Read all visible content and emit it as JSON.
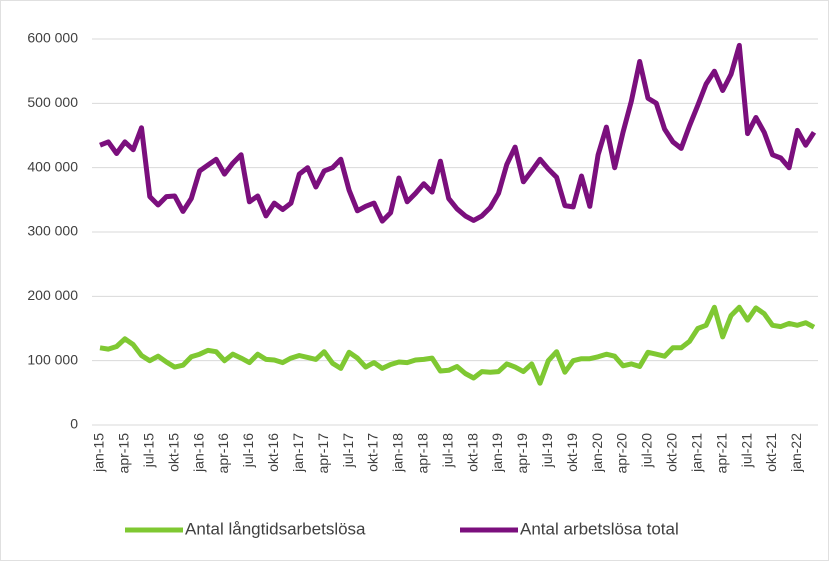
{
  "chart_data": {
    "type": "line",
    "categories": [
      "jan-15",
      null,
      null,
      "apr-15",
      null,
      null,
      "jul-15",
      null,
      null,
      "okt-15",
      null,
      null,
      "jan-16",
      null,
      null,
      "apr-16",
      null,
      null,
      "jul-16",
      null,
      null,
      "okt-16",
      null,
      null,
      "jan-17",
      null,
      null,
      "apr-17",
      null,
      null,
      "jul-17",
      null,
      null,
      "okt-17",
      null,
      null,
      "jan-18",
      null,
      null,
      "apr-18",
      null,
      null,
      "jul-18",
      null,
      null,
      "okt-18",
      null,
      null,
      "jan-19",
      null,
      null,
      "apr-19",
      null,
      null,
      "jul-19",
      null,
      null,
      "okt-19",
      null,
      null,
      "jan-20",
      null,
      null,
      "apr-20",
      null,
      null,
      "jul-20",
      null,
      null,
      "okt-20",
      null,
      null,
      "jan-21",
      null,
      null,
      "apr-21",
      null,
      null,
      "jul-21",
      null,
      null,
      "okt-21",
      null,
      null,
      "jan-22",
      null,
      null
    ],
    "series": [
      {
        "name": "Antal långtidsarbetslösa",
        "color": "#7fc832",
        "values": [
          120000,
          118000,
          122000,
          134000,
          125000,
          108000,
          100000,
          107000,
          98000,
          90000,
          93000,
          106000,
          110000,
          116000,
          114000,
          100000,
          110000,
          104000,
          97000,
          110000,
          102000,
          101000,
          97000,
          104000,
          108000,
          105000,
          102000,
          114000,
          96000,
          88000,
          113000,
          104000,
          90000,
          97000,
          88000,
          94000,
          98000,
          97000,
          101000,
          102000,
          104000,
          84000,
          85000,
          91000,
          80000,
          73000,
          83000,
          82000,
          83000,
          95000,
          90000,
          83000,
          95000,
          65000,
          100000,
          114000,
          82000,
          100000,
          103000,
          103000,
          106000,
          110000,
          107000,
          92000,
          95000,
          91000,
          113000,
          110000,
          107000,
          120000,
          120000,
          130000,
          150000,
          155000,
          183000,
          137000,
          170000,
          183000,
          163000,
          182000,
          173000,
          155000,
          153000,
          158000,
          155000,
          159000,
          152000
        ]
      },
      {
        "name": "Antal arbetslösa total",
        "color": "#7b0f7d",
        "values": [
          435000,
          440000,
          422000,
          440000,
          428000,
          462000,
          355000,
          342000,
          355000,
          356000,
          332000,
          352000,
          395000,
          404000,
          413000,
          390000,
          407000,
          420000,
          347000,
          356000,
          325000,
          345000,
          335000,
          345000,
          390000,
          400000,
          370000,
          395000,
          400000,
          413000,
          365000,
          333000,
          340000,
          345000,
          317000,
          330000,
          384000,
          347000,
          360000,
          375000,
          362000,
          410000,
          352000,
          336000,
          325000,
          318000,
          325000,
          338000,
          360000,
          405000,
          432000,
          378000,
          395000,
          413000,
          398000,
          385000,
          341000,
          339000,
          387000,
          340000,
          420000,
          463000,
          400000,
          455000,
          503000,
          565000,
          508000,
          500000,
          460000,
          440000,
          430000,
          465000,
          497000,
          530000,
          550000,
          520000,
          545000,
          590000,
          453000,
          478000,
          455000,
          420000,
          415000,
          400000,
          458000,
          435000,
          455000
        ]
      }
    ],
    "ylim": [
      0,
      600000
    ],
    "yticks": [
      0,
      {
        "value": 100000,
        "label": "100 000"
      },
      {
        "value": 200000,
        "label": "200 000"
      },
      {
        "value": 300000,
        "label": "300 000"
      },
      {
        "value": 400000,
        "label": "400 000"
      },
      {
        "value": 500000,
        "label": "500 000"
      },
      {
        "value": 600000,
        "label": "600 000"
      }
    ],
    "grid": true,
    "legend": "bottom"
  }
}
